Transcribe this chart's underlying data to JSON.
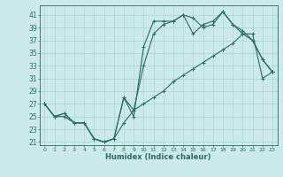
{
  "xlabel": "Humidex (Indice chaleur)",
  "xlim": [
    -0.5,
    23.5
  ],
  "ylim": [
    20.5,
    42.5
  ],
  "xticks": [
    0,
    1,
    2,
    3,
    4,
    5,
    6,
    7,
    8,
    9,
    10,
    11,
    12,
    13,
    14,
    15,
    16,
    17,
    18,
    19,
    20,
    21,
    22,
    23
  ],
  "yticks": [
    21,
    23,
    25,
    27,
    29,
    31,
    33,
    35,
    37,
    39,
    41
  ],
  "bg_color": "#cceaea",
  "grid_color": "#b0d8d8",
  "line_color": "#2a6b5a",
  "line1_x": [
    0,
    1,
    2,
    3,
    4,
    5,
    6,
    7,
    8,
    9,
    10,
    11,
    12,
    13,
    14,
    15,
    16,
    17,
    18,
    19,
    20,
    21,
    22,
    23
  ],
  "line1_y": [
    27,
    25,
    25.5,
    24,
    24,
    21.5,
    21,
    21.5,
    28,
    25,
    36,
    40,
    40,
    40,
    41,
    38,
    39.5,
    40,
    41.5,
    39.5,
    38.5,
    37,
    34,
    32
  ],
  "line2_x": [
    0,
    1,
    2,
    3,
    4,
    5,
    6,
    7,
    8,
    9,
    10,
    11,
    12,
    13,
    14,
    15,
    16,
    17,
    18,
    19,
    20,
    21,
    22,
    23
  ],
  "line2_y": [
    27,
    25,
    25.5,
    24,
    24,
    21.5,
    21,
    21.5,
    28,
    26,
    33,
    38,
    39.5,
    40,
    41,
    40.5,
    39,
    39.5,
    41.5,
    39.5,
    38,
    37,
    34,
    32
  ],
  "line3_x": [
    0,
    1,
    2,
    3,
    4,
    5,
    6,
    7,
    8,
    9,
    10,
    11,
    12,
    13,
    14,
    15,
    16,
    17,
    18,
    19,
    20,
    21,
    22,
    23
  ],
  "line3_y": [
    27,
    25,
    25,
    24,
    24,
    21.5,
    21,
    21.5,
    24,
    26,
    27,
    28,
    29,
    30.5,
    31.5,
    32.5,
    33.5,
    34.5,
    35.5,
    36.5,
    38,
    38,
    31,
    32
  ]
}
